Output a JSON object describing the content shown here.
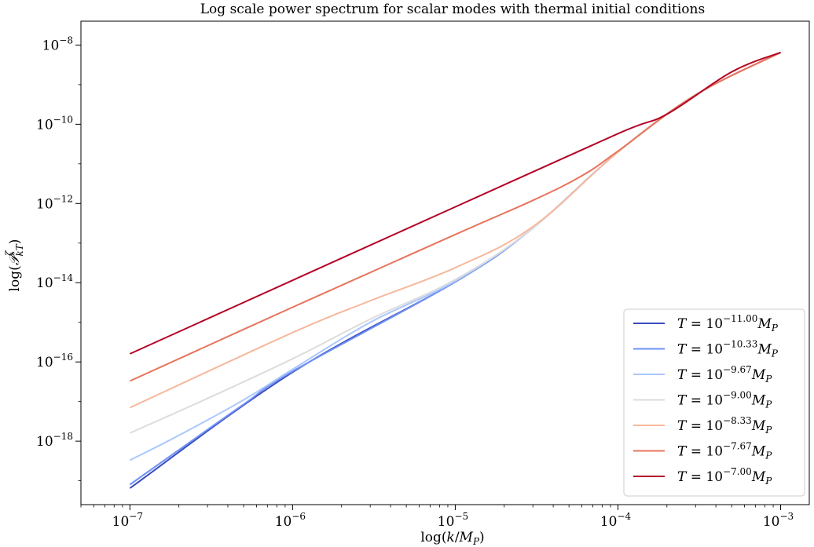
{
  "chart_data": {
    "type": "line",
    "title": "Log scale power spectrum for scalar modes with thermal initial conditions",
    "xlabel": "log(k/M_P)",
    "ylabel": "log(𝒫^ζ_kT)",
    "xscale": "log",
    "yscale": "log",
    "xlim": [
      5e-08,
      0.0015
    ],
    "ylim": [
      2.5e-20,
      4e-08
    ],
    "grid": false,
    "legend_position": "lower-right",
    "x_ticks": [
      {
        "value": 1e-07,
        "base": "10",
        "exp": "−7"
      },
      {
        "value": 1e-06,
        "base": "10",
        "exp": "−6"
      },
      {
        "value": 1e-05,
        "base": "10",
        "exp": "−5"
      },
      {
        "value": 0.0001,
        "base": "10",
        "exp": "−4"
      },
      {
        "value": 0.001,
        "base": "10",
        "exp": "−3"
      }
    ],
    "y_ticks": [
      {
        "value": 1e-18,
        "base": "10",
        "exp": "−18"
      },
      {
        "value": 1e-16,
        "base": "10",
        "exp": "−16"
      },
      {
        "value": 1e-14,
        "base": "10",
        "exp": "−14"
      },
      {
        "value": 1e-12,
        "base": "10",
        "exp": "−12"
      },
      {
        "value": 1e-10,
        "base": "10",
        "exp": "−10"
      },
      {
        "value": 1e-08,
        "base": "10",
        "exp": "−8"
      }
    ],
    "series": [
      {
        "name": "T = 10^{-11.00} M_P",
        "exp_label": "−11.00",
        "color": "#3b4cc0",
        "x": [
          1e-07,
          1e-06,
          1e-05,
          3e-05,
          0.0001,
          0.0003,
          0.001
        ],
        "y": [
          6.5e-20,
          5.5e-17,
          1.05e-14,
          2.4e-13,
          2e-11,
          5.5e-10,
          6.5e-09
        ]
      },
      {
        "name": "T = 10^{-10.33} M_P",
        "exp_label": "−10.33",
        "color": "#6f92f3",
        "x": [
          1e-07,
          2e-07,
          5e-07,
          1e-06,
          1e-05,
          3e-05,
          0.0001,
          0.0003,
          0.001
        ],
        "y": [
          8e-20,
          6e-19,
          8.5e-18,
          5.8e-17,
          1.05e-14,
          2.4e-13,
          2e-11,
          5.5e-10,
          6.5e-09
        ]
      },
      {
        "name": "T = 10^{-9.67} M_P",
        "exp_label": "−9.67",
        "color": "#aac7fd",
        "x": [
          1e-07,
          2e-07,
          5e-07,
          1e-06,
          3e-06,
          1e-05,
          3e-05,
          0.0001,
          0.0003,
          0.001
        ],
        "y": [
          3.3e-19,
          1.4e-18,
          1.1e-17,
          6.5e-17,
          1e-15,
          1.1e-14,
          2.4e-13,
          2e-11,
          5.5e-10,
          6.5e-09
        ]
      },
      {
        "name": "T = 10^{-9.00} M_P",
        "exp_label": "−9.00",
        "color": "#dddcdc",
        "x": [
          1e-07,
          3e-07,
          1e-06,
          3e-06,
          1e-05,
          3e-05,
          0.0001,
          0.0003,
          0.001
        ],
        "y": [
          1.6e-18,
          1.2e-17,
          1.2e-16,
          1.2e-15,
          1.2e-14,
          2.4e-13,
          2e-11,
          5.5e-10,
          6.5e-09
        ]
      },
      {
        "name": "T = 10^{-8.33} M_P",
        "exp_label": "−8.33",
        "color": "#f7b89c",
        "x": [
          1e-07,
          1e-06,
          3e-06,
          1e-05,
          3e-05,
          0.0001,
          0.0003,
          0.001
        ],
        "y": [
          7e-18,
          5.5e-16,
          3.5e-15,
          2.4e-14,
          2.6e-13,
          2e-11,
          5.5e-10,
          6.5e-09
        ]
      },
      {
        "name": "T = 10^{-7.67} M_P",
        "exp_label": "−7.67",
        "color": "#e7745b",
        "x": [
          1e-07,
          1e-06,
          1e-05,
          3e-05,
          6e-05,
          0.0001,
          0.0003,
          0.001
        ],
        "y": [
          3.3e-17,
          2.4e-15,
          1.65e-13,
          1.2e-12,
          5e-12,
          2.1e-11,
          5.5e-10,
          6.5e-09
        ]
      },
      {
        "name": "T = 10^{-7.00} M_P",
        "exp_label": "−7.00",
        "color": "#b40426",
        "x": [
          1e-07,
          1e-06,
          1e-05,
          0.0001,
          0.0002,
          0.0005,
          0.001
        ],
        "y": [
          1.6e-16,
          1.15e-14,
          8.2e-13,
          5.8e-11,
          1.8e-10,
          2.1e-09,
          6.5e-09
        ]
      }
    ]
  }
}
